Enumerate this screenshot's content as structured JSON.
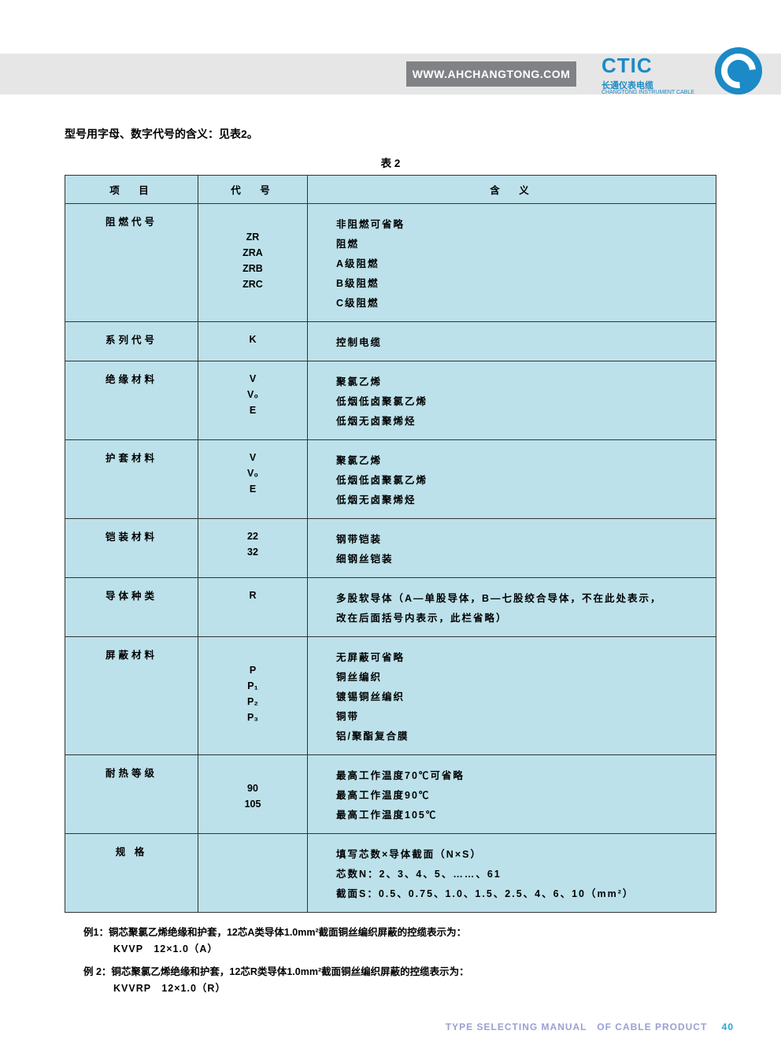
{
  "colors": {
    "band": "#e6e6e6",
    "urlbox": "#808285",
    "brand": "#1b8ac6",
    "tablebg": "#bce1ea",
    "border": "#333333",
    "footer": "#9aa0d1",
    "pagenum": "#2aa4d6"
  },
  "header": {
    "url": "WWW.AHCHANGTONG.COM",
    "logo_text": "CTIC",
    "logo_sub1": "长通仪表电缆",
    "logo_sub2": "CHANGTONG INSTRUMENT CABLE"
  },
  "intro": "型号用字母、数字代号的含义：见表2。",
  "table_caption": "表 2",
  "table": {
    "headers": [
      "项　目",
      "代　号",
      "含　义"
    ],
    "rows": [
      {
        "item": "阻燃代号",
        "codes": [
          "",
          "ZR",
          "ZRA",
          "ZRB",
          "ZRC"
        ],
        "meanings": [
          "非阻燃可省略",
          "阻燃",
          "A级阻燃",
          "B级阻燃",
          "C级阻燃"
        ]
      },
      {
        "item": "系列代号",
        "codes": [
          "K"
        ],
        "meanings": [
          "控制电缆"
        ]
      },
      {
        "item": "绝缘材料",
        "codes": [
          "V",
          "V₀",
          "E"
        ],
        "meanings": [
          "聚氯乙烯",
          "低烟低卤聚氯乙烯",
          "低烟无卤聚烯烃"
        ]
      },
      {
        "item": "护套材料",
        "codes": [
          "V",
          "V₀",
          "E"
        ],
        "meanings": [
          "聚氯乙烯",
          "低烟低卤聚氯乙烯",
          "低烟无卤聚烯烃"
        ]
      },
      {
        "item": "铠装材料",
        "codes": [
          "22",
          "32"
        ],
        "meanings": [
          "钢带铠装",
          "细钢丝铠装"
        ]
      },
      {
        "item": "导体种类",
        "codes": [
          "R"
        ],
        "meanings": [
          "多股软导体（A—单股导体，B—七股绞合导体，不在此处表示，",
          "改在后面括号内表示，此栏省略）"
        ]
      },
      {
        "item": "屏蔽材料",
        "codes": [
          "",
          "P",
          "P₁",
          "P₂",
          "P₃"
        ],
        "meanings": [
          "无屏蔽可省略",
          "铜丝编织",
          "镀锡铜丝编织",
          "铜带",
          "铝/聚酯复合膜"
        ]
      },
      {
        "item": "耐热等级",
        "codes": [
          "",
          "90",
          "105"
        ],
        "meanings": [
          "最高工作温度70℃可省略",
          "最高工作温度90℃",
          "最高工作温度105℃"
        ]
      },
      {
        "item": "规 格",
        "codes": [
          ""
        ],
        "meanings": [
          "填写芯数×导体截面（N×S）",
          "芯数N：2、3、4、5、……、61",
          "截面S：0.5、0.75、1.0、1.5、2.5、4、6、10（mm²）"
        ]
      }
    ]
  },
  "examples": {
    "ex1_label": "例1：铜芯聚氯乙烯绝缘和护套，12芯A类导体1.0mm²截面铜丝编织屏蔽的控缆表示为：",
    "ex1_value": "KVVP　12×1.0（A）",
    "ex2_label": "例 2：铜芯聚氯乙烯绝缘和护套，12芯R类导体1.0mm²截面铜丝编织屏蔽的控缆表示为：",
    "ex2_value": "KVVRP　12×1.0（R）"
  },
  "footer": {
    "text": "TYPE SELECTING MANUAL　OF CABLE PRODUCT",
    "page": "40"
  }
}
